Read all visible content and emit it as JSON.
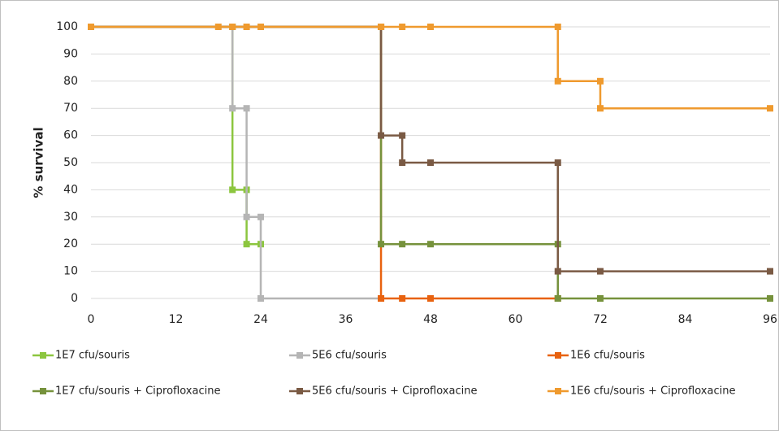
{
  "chart_data": {
    "type": "line",
    "y_label": "% survival",
    "xlim": [
      0,
      96
    ],
    "xticks": [
      0,
      12,
      24,
      36,
      48,
      60,
      72,
      84,
      96
    ],
    "ylim": [
      0,
      100
    ],
    "yticks": [
      0,
      10,
      20,
      30,
      40,
      50,
      60,
      70,
      80,
      90,
      100
    ],
    "grid": true,
    "legend": "bottom",
    "marker": "square",
    "series": [
      {
        "name": "1E7 cfu/souris",
        "color": "#8cc63f",
        "x": [
          0,
          20,
          20,
          22,
          22,
          24
        ],
        "values": [
          100,
          100,
          40,
          40,
          20,
          20
        ]
      },
      {
        "name": "5E6 cfu/souris",
        "color": "#b5b5b5",
        "x": [
          0,
          20,
          20,
          22,
          22,
          24,
          24,
          41
        ],
        "values": [
          100,
          100,
          70,
          70,
          30,
          30,
          0,
          0
        ]
      },
      {
        "name": "1E6 cfu/souris",
        "color": "#e8620f",
        "x": [
          0,
          41,
          41,
          44,
          48,
          66
        ],
        "values": [
          100,
          100,
          0,
          0,
          0,
          0
        ]
      },
      {
        "name": "1E7 cfu/souris + Ciprofloxacine",
        "color": "#76923c",
        "x": [
          0,
          41,
          41,
          44,
          48,
          66,
          66,
          72,
          96
        ],
        "values": [
          100,
          100,
          20,
          20,
          20,
          20,
          0,
          0,
          0
        ]
      },
      {
        "name": "5E6 cfu/souris + Ciprofloxacine",
        "color": "#7a5a44",
        "x": [
          0,
          41,
          41,
          44,
          44,
          48,
          66,
          66,
          72,
          96
        ],
        "values": [
          100,
          100,
          60,
          60,
          50,
          50,
          50,
          10,
          10,
          10
        ]
      },
      {
        "name": "1E6 cfu/souris + Ciprofloxacine",
        "color": "#ef9a2e",
        "x": [
          0,
          18,
          20,
          22,
          24,
          41,
          44,
          48,
          66,
          66,
          72,
          72,
          96
        ],
        "values": [
          100,
          100,
          100,
          100,
          100,
          100,
          100,
          100,
          100,
          80,
          80,
          70,
          70
        ]
      }
    ]
  }
}
